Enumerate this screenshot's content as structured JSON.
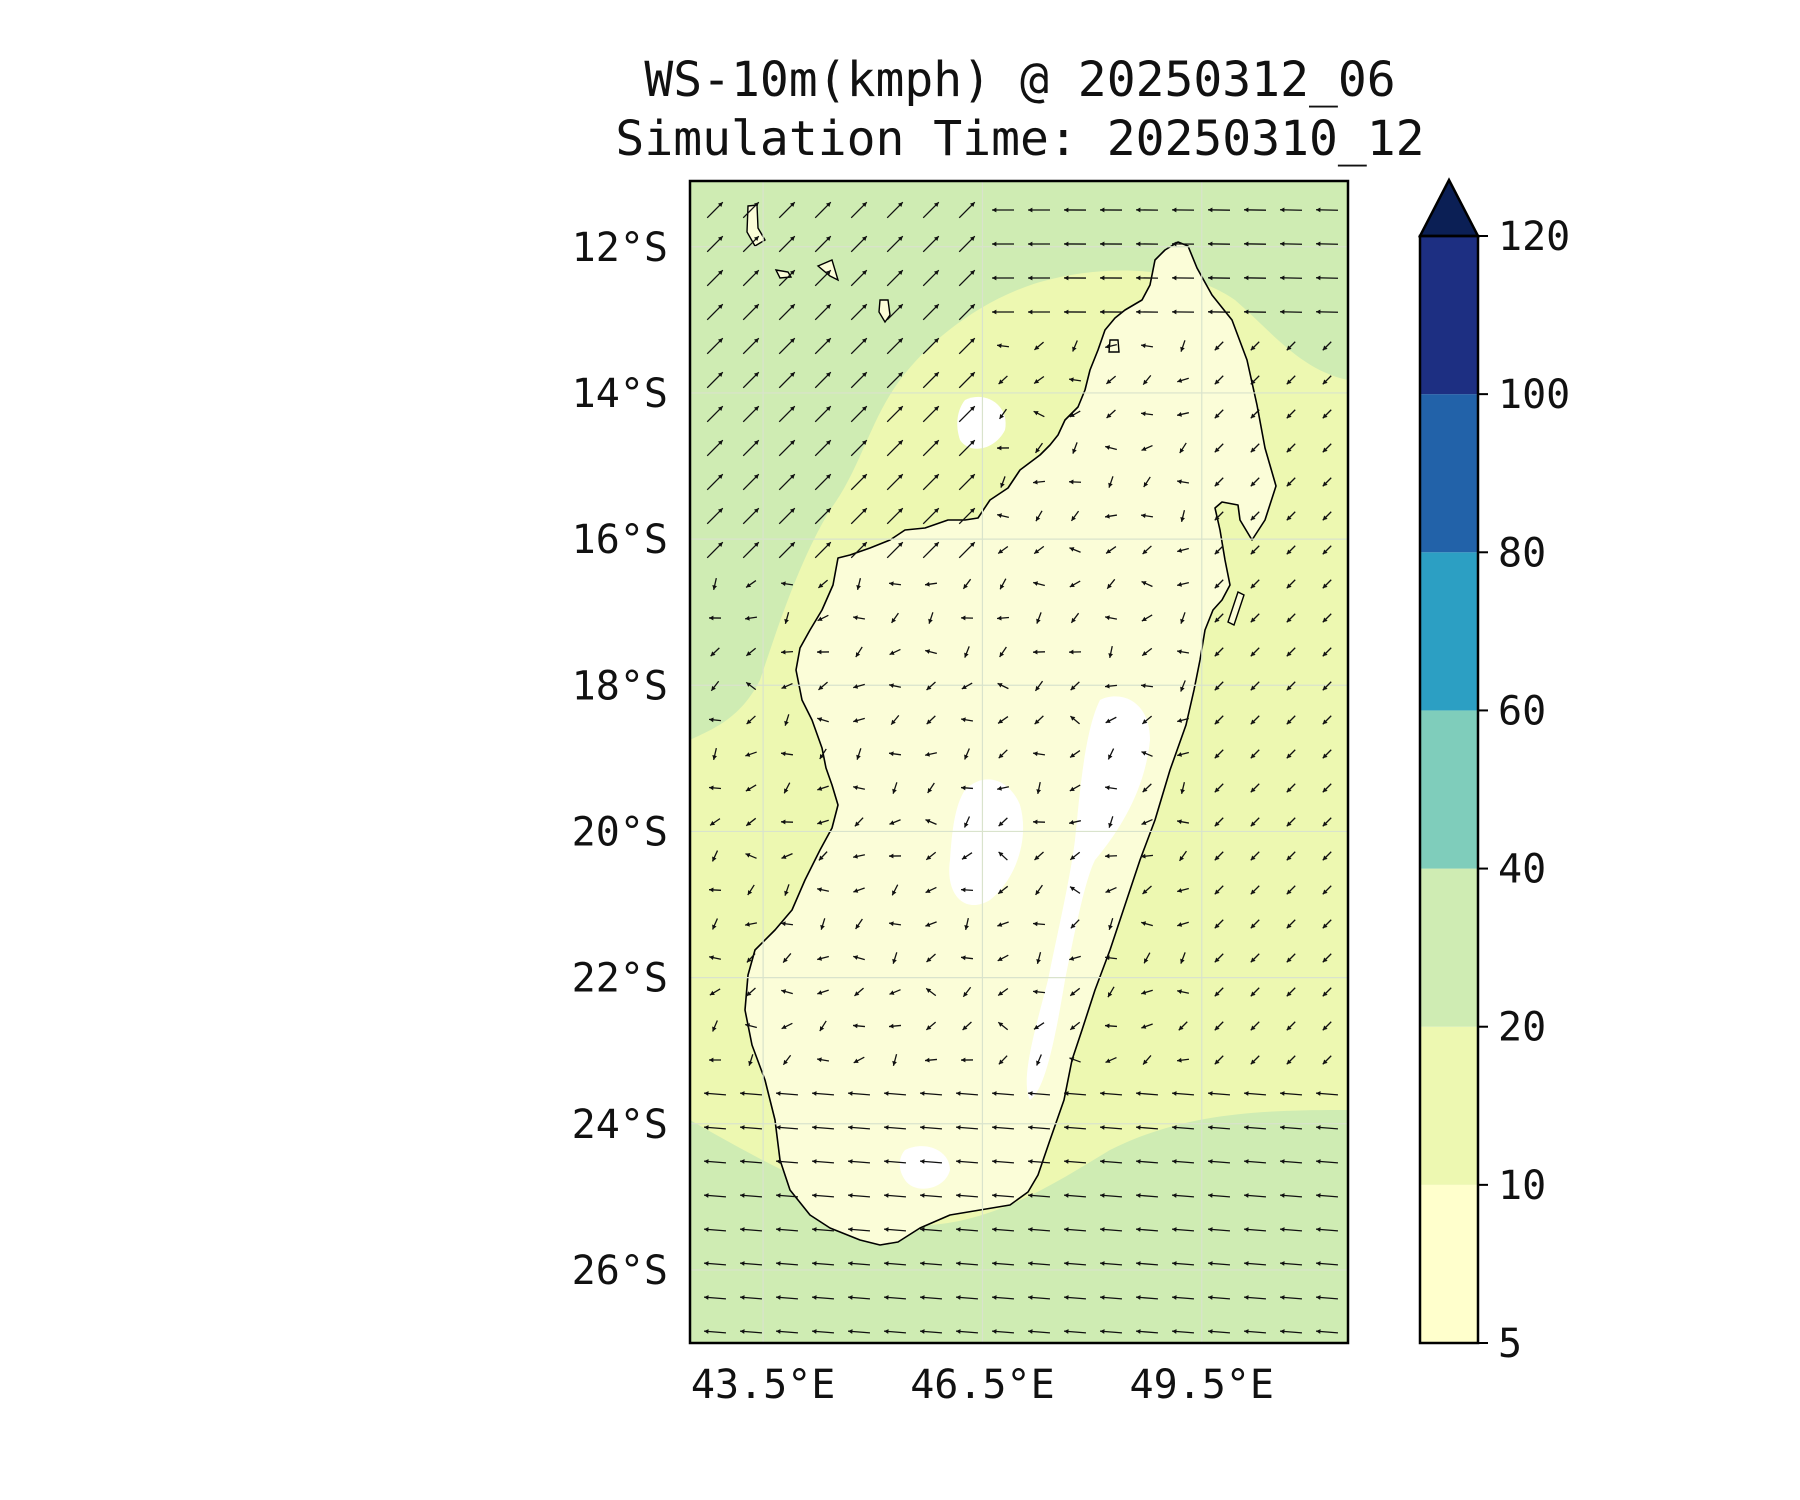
{
  "title": {
    "line1": "WS-10m(kmph) @ 20250312_06",
    "line2": "Simulation Time: 20250310_12"
  },
  "map": {
    "region": "Madagascar",
    "lon_range": [
      42.5,
      51.5
    ],
    "lat_range": [
      -27.0,
      -11.1
    ],
    "lon_ticks": [
      {
        "value": 43.5,
        "label": "43.5°E"
      },
      {
        "value": 46.5,
        "label": "46.5°E"
      },
      {
        "value": 49.5,
        "label": "49.5°E"
      }
    ],
    "lat_ticks": [
      {
        "value": -12,
        "label": "12°S"
      },
      {
        "value": -14,
        "label": "14°S"
      },
      {
        "value": -16,
        "label": "16°S"
      },
      {
        "value": -18,
        "label": "18°S"
      },
      {
        "value": -20,
        "label": "20°S"
      },
      {
        "value": -22,
        "label": "22°S"
      },
      {
        "value": -24,
        "label": "24°S"
      },
      {
        "value": -26,
        "label": "26°S"
      }
    ],
    "gridlines": true,
    "wind_vectors": true
  },
  "colorbar": {
    "levels": [
      5,
      10,
      20,
      40,
      60,
      80,
      100,
      120
    ],
    "labels": [
      "5",
      "10",
      "20",
      "40",
      "60",
      "80",
      "100",
      "120"
    ],
    "colors": [
      "#ffffcc",
      "#edf8b1",
      "#cfecb3",
      "#7fcdbb",
      "#2c9fc3",
      "#2262a9",
      "#1d2f82"
    ],
    "extend_color": "#0b1f55",
    "extend": "max"
  },
  "colors": {
    "sea_calm": "#edf8b1",
    "sea_windy": "#cfecb3",
    "land_calm": "#fbfdd8",
    "land_patch": "#ffffff",
    "coast": "#000000"
  }
}
